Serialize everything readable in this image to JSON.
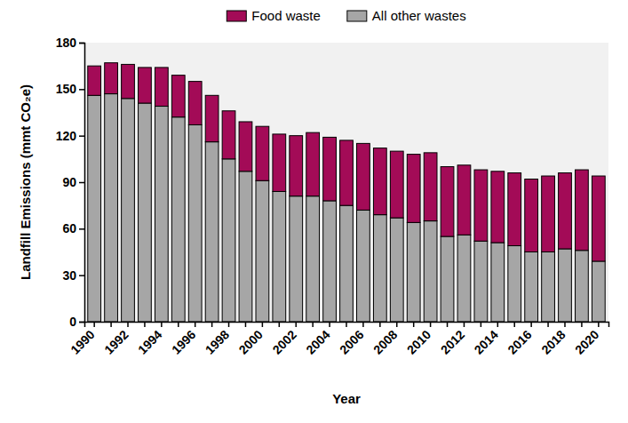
{
  "chart_data": {
    "type": "bar",
    "stacked": true,
    "x_label": "Year",
    "y_label": "Landfill Emissions (mmt CO₂e)",
    "categories": [
      "1990",
      null,
      "1992",
      null,
      "1994",
      null,
      "1996",
      null,
      "1998",
      null,
      "2000",
      null,
      "2002",
      null,
      "2004",
      null,
      "2006",
      null,
      "2008",
      null,
      "2010",
      null,
      "2012",
      null,
      "2014",
      null,
      "2016",
      null,
      "2018",
      null,
      "2020"
    ],
    "series": [
      {
        "name": "Food waste",
        "color": "#a30b57",
        "values": [
          19,
          20,
          22,
          23,
          25,
          27,
          28,
          30,
          31,
          32,
          35,
          37,
          39,
          41,
          41,
          42,
          43,
          43,
          43,
          44,
          44,
          45,
          45,
          46,
          46,
          47,
          47,
          49,
          49,
          52,
          55
        ]
      },
      {
        "name": "All other wastes",
        "color": "#a6a6a6",
        "values": [
          146,
          147,
          144,
          141,
          139,
          132,
          127,
          116,
          105,
          97,
          91,
          84,
          81,
          81,
          78,
          75,
          72,
          69,
          67,
          64,
          65,
          55,
          56,
          52,
          51,
          49,
          45,
          45,
          47,
          46,
          39
        ]
      }
    ],
    "ylim": [
      0,
      180
    ],
    "yticks": [
      0,
      30,
      60,
      90,
      120,
      150,
      180
    ],
    "grid": false,
    "legend": "top"
  }
}
